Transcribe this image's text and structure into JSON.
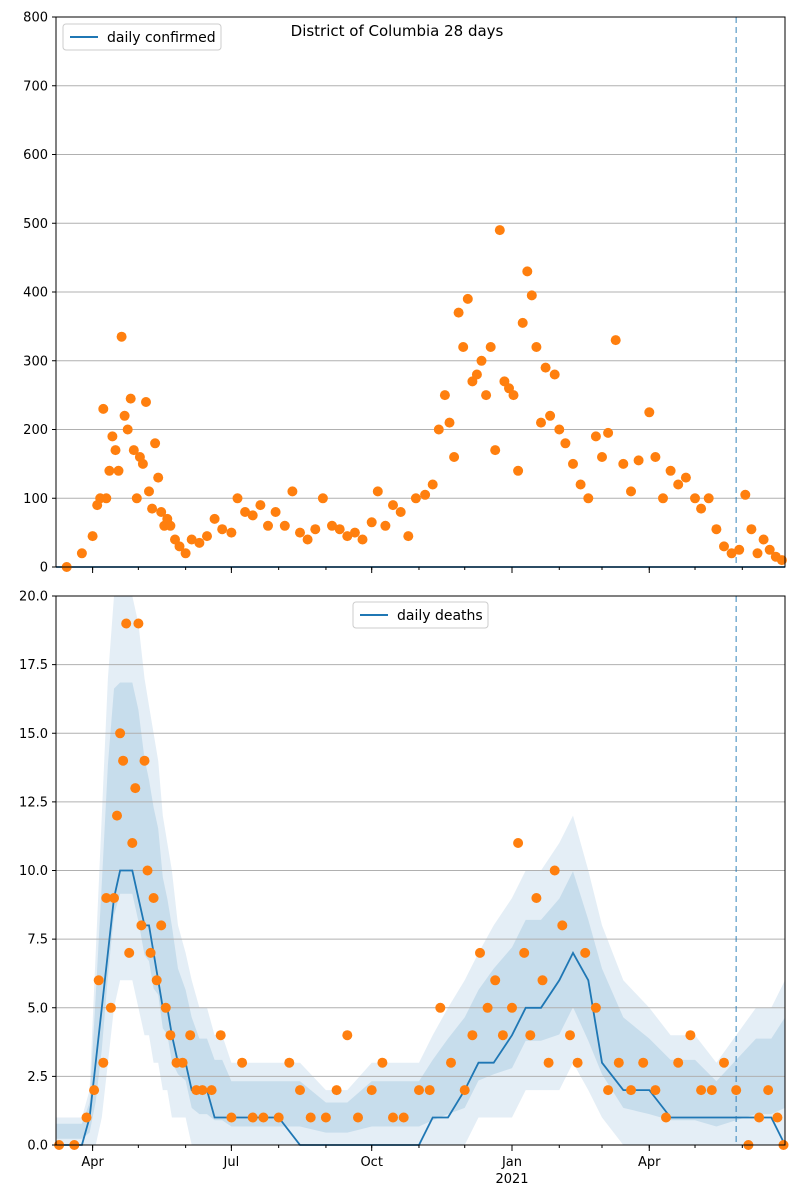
{
  "chart_data": [
    {
      "type": "scatter",
      "title": "District of Columbia 28 days",
      "legend": {
        "position": "top-left",
        "entries": [
          "daily confirmed"
        ]
      },
      "ylim": [
        0,
        800
      ],
      "yticks": [
        0,
        100,
        200,
        300,
        400,
        500,
        600,
        700,
        800
      ],
      "xlim": [
        "2020-03-08",
        "2021-06-29"
      ],
      "grid": "y",
      "forecast_start": "2021-05-28",
      "colors": {
        "line": "#1f77b4",
        "points": "#ff7f0e",
        "vline": "#1f77b4"
      },
      "series": [
        {
          "name": "daily confirmed",
          "kind": "line",
          "x": [
            "2020-03-08",
            "2021-06-29"
          ],
          "y": [
            0,
            0
          ]
        },
        {
          "kind": "points",
          "x": [
            "2020-03-15",
            "2020-03-25",
            "2020-04-01",
            "2020-04-04",
            "2020-04-06",
            "2020-04-08",
            "2020-04-10",
            "2020-04-12",
            "2020-04-14",
            "2020-04-16",
            "2020-04-18",
            "2020-04-20",
            "2020-04-22",
            "2020-04-24",
            "2020-04-26",
            "2020-04-28",
            "2020-04-30",
            "2020-05-02",
            "2020-05-04",
            "2020-05-06",
            "2020-05-08",
            "2020-05-10",
            "2020-05-12",
            "2020-05-14",
            "2020-05-16",
            "2020-05-18",
            "2020-05-20",
            "2020-05-22",
            "2020-05-25",
            "2020-05-28",
            "2020-06-01",
            "2020-06-05",
            "2020-06-10",
            "2020-06-15",
            "2020-06-20",
            "2020-06-25",
            "2020-07-01",
            "2020-07-05",
            "2020-07-10",
            "2020-07-15",
            "2020-07-20",
            "2020-07-25",
            "2020-07-30",
            "2020-08-05",
            "2020-08-10",
            "2020-08-15",
            "2020-08-20",
            "2020-08-25",
            "2020-08-30",
            "2020-09-05",
            "2020-09-10",
            "2020-09-15",
            "2020-09-20",
            "2020-09-25",
            "2020-10-01",
            "2020-10-05",
            "2020-10-10",
            "2020-10-15",
            "2020-10-20",
            "2020-10-25",
            "2020-10-30",
            "2020-11-05",
            "2020-11-10",
            "2020-11-14",
            "2020-11-18",
            "2020-11-21",
            "2020-11-24",
            "2020-11-27",
            "2020-11-30",
            "2020-12-03",
            "2020-12-06",
            "2020-12-09",
            "2020-12-12",
            "2020-12-15",
            "2020-12-18",
            "2020-12-21",
            "2020-12-24",
            "2020-12-27",
            "2020-12-30",
            "2021-01-02",
            "2021-01-05",
            "2021-01-08",
            "2021-01-11",
            "2021-01-14",
            "2021-01-17",
            "2021-01-20",
            "2021-01-23",
            "2021-01-26",
            "2021-01-29",
            "2021-02-01",
            "2021-02-05",
            "2021-02-10",
            "2021-02-15",
            "2021-02-20",
            "2021-02-25",
            "2021-03-01",
            "2021-03-05",
            "2021-03-10",
            "2021-03-15",
            "2021-03-20",
            "2021-03-25",
            "2021-04-01",
            "2021-04-05",
            "2021-04-10",
            "2021-04-15",
            "2021-04-20",
            "2021-04-25",
            "2021-05-01",
            "2021-05-05",
            "2021-05-10",
            "2021-05-15",
            "2021-05-20",
            "2021-05-25",
            "2021-05-30",
            "2021-06-03",
            "2021-06-07",
            "2021-06-11",
            "2021-06-15",
            "2021-06-19",
            "2021-06-23",
            "2021-06-27"
          ],
          "y": [
            0,
            20,
            45,
            90,
            100,
            230,
            100,
            140,
            190,
            170,
            140,
            335,
            220,
            200,
            245,
            170,
            100,
            160,
            150,
            240,
            110,
            85,
            180,
            130,
            80,
            60,
            70,
            60,
            40,
            30,
            20,
            40,
            35,
            45,
            70,
            55,
            50,
            100,
            80,
            75,
            90,
            60,
            80,
            60,
            110,
            50,
            40,
            55,
            100,
            60,
            55,
            45,
            50,
            40,
            65,
            110,
            60,
            90,
            80,
            45,
            100,
            105,
            120,
            200,
            250,
            210,
            160,
            370,
            320,
            390,
            270,
            280,
            300,
            250,
            320,
            170,
            490,
            270,
            260,
            250,
            140,
            355,
            430,
            395,
            320,
            210,
            290,
            220,
            280,
            200,
            180,
            150,
            120,
            100,
            190,
            160,
            195,
            330,
            150,
            110,
            155,
            225,
            160,
            100,
            140,
            120,
            130,
            100,
            85,
            100,
            55,
            30,
            20,
            25,
            105,
            55,
            20,
            40,
            25,
            15,
            10
          ]
        }
      ]
    },
    {
      "type": "line",
      "legend": {
        "position": "top-center",
        "entries": [
          "daily deaths"
        ]
      },
      "ylim": [
        0,
        20
      ],
      "yticks": [
        "0.0",
        "2.5",
        "5.0",
        "7.5",
        "10.0",
        "12.5",
        "15.0",
        "17.5",
        "20.0"
      ],
      "xlim": [
        "2020-03-08",
        "2021-06-29"
      ],
      "xticks": [
        {
          "date": "2020-04-01",
          "label": "Apr"
        },
        {
          "date": "2020-07-01",
          "label": "Jul"
        },
        {
          "date": "2020-10-01",
          "label": "Oct"
        },
        {
          "date": "2021-01-01",
          "label": "Jan",
          "sublabel": "2021"
        },
        {
          "date": "2021-04-01",
          "label": "Apr"
        }
      ],
      "grid": "y",
      "forecast_start": "2021-05-28",
      "colors": {
        "line": "#1f77b4",
        "points": "#ff7f0e",
        "band": "#1f77b4",
        "vline": "#1f77b4"
      },
      "series": [
        {
          "name": "daily deaths",
          "kind": "line",
          "x": [
            "2020-03-08",
            "2020-03-25",
            "2020-03-30",
            "2020-04-03",
            "2020-04-07",
            "2020-04-11",
            "2020-04-15",
            "2020-04-19",
            "2020-04-23",
            "2020-04-27",
            "2020-05-01",
            "2020-05-05",
            "2020-05-08",
            "2020-05-11",
            "2020-05-14",
            "2020-05-17",
            "2020-05-20",
            "2020-05-23",
            "2020-05-27",
            "2020-06-01",
            "2020-06-05",
            "2020-06-10",
            "2020-06-15",
            "2020-06-20",
            "2020-06-25",
            "2020-07-01",
            "2020-07-15",
            "2020-08-01",
            "2020-08-15",
            "2020-09-01",
            "2020-09-15",
            "2020-10-01",
            "2020-10-15",
            "2020-11-01",
            "2020-11-10",
            "2020-11-20",
            "2020-12-01",
            "2020-12-10",
            "2020-12-20",
            "2021-01-01",
            "2021-01-10",
            "2021-01-20",
            "2021-02-01",
            "2021-02-10",
            "2021-02-20",
            "2021-03-01",
            "2021-03-15",
            "2021-04-01",
            "2021-04-15",
            "2021-05-01",
            "2021-05-15",
            "2021-05-28",
            "2021-06-10",
            "2021-06-20",
            "2021-06-29"
          ],
          "y": [
            0,
            0,
            1,
            3,
            5,
            7,
            9,
            10,
            10,
            10,
            9,
            8,
            8,
            7,
            6,
            5,
            5,
            4,
            3,
            3,
            2,
            2,
            2,
            1,
            1,
            1,
            1,
            1,
            0,
            0,
            0,
            0,
            0,
            0,
            1,
            1,
            2,
            3,
            3,
            4,
            5,
            5,
            6,
            7,
            6,
            3,
            2,
            2,
            1,
            1,
            1,
            1,
            1,
            1,
            0
          ]
        },
        {
          "kind": "band",
          "x": [
            "2020-03-08",
            "2020-03-25",
            "2020-03-30",
            "2020-04-03",
            "2020-04-07",
            "2020-04-11",
            "2020-04-15",
            "2020-04-19",
            "2020-04-23",
            "2020-04-27",
            "2020-05-01",
            "2020-05-05",
            "2020-05-08",
            "2020-05-11",
            "2020-05-14",
            "2020-05-17",
            "2020-05-20",
            "2020-05-23",
            "2020-05-27",
            "2020-06-01",
            "2020-06-05",
            "2020-06-10",
            "2020-06-15",
            "2020-06-20",
            "2020-06-25",
            "2020-07-01",
            "2020-07-15",
            "2020-08-01",
            "2020-08-15",
            "2020-09-01",
            "2020-09-15",
            "2020-10-01",
            "2020-10-15",
            "2020-11-01",
            "2020-11-10",
            "2020-11-20",
            "2020-12-01",
            "2020-12-10",
            "2020-12-20",
            "2021-01-01",
            "2021-01-10",
            "2021-01-20",
            "2021-02-01",
            "2021-02-10",
            "2021-02-20",
            "2021-03-01",
            "2021-03-15",
            "2021-04-01",
            "2021-04-15",
            "2021-05-01",
            "2021-05-15",
            "2021-05-28",
            "2021-06-10",
            "2021-06-20",
            "2021-06-29"
          ],
          "low": [
            0,
            0,
            0,
            0,
            1,
            3,
            5,
            6,
            6,
            6,
            5,
            4,
            4,
            3,
            3,
            2,
            2,
            1,
            1,
            1,
            0,
            0,
            0,
            0,
            0,
            0,
            0,
            0,
            0,
            0,
            0,
            0,
            0,
            0,
            0,
            0,
            0,
            1,
            1,
            1,
            2,
            2,
            2,
            3,
            2,
            1,
            0,
            0,
            0,
            0,
            0,
            0,
            0,
            0,
            0
          ],
          "high": [
            1,
            1,
            2,
            7,
            12,
            17,
            20,
            20,
            20,
            20,
            19,
            17,
            16,
            15,
            14,
            12,
            11,
            10,
            8,
            7,
            6,
            5,
            5,
            4,
            4,
            3,
            3,
            3,
            3,
            2,
            2,
            3,
            3,
            3,
            4,
            5,
            6,
            7,
            8,
            9,
            10,
            10,
            11,
            12,
            10,
            8,
            6,
            5,
            4,
            4,
            3,
            4,
            5,
            5,
            6
          ]
        },
        {
          "kind": "points",
          "x": [
            "2020-03-10",
            "2020-03-20",
            "2020-03-28",
            "2020-04-02",
            "2020-04-05",
            "2020-04-08",
            "2020-04-10",
            "2020-04-13",
            "2020-04-15",
            "2020-04-17",
            "2020-04-19",
            "2020-04-21",
            "2020-04-23",
            "2020-04-25",
            "2020-04-27",
            "2020-04-29",
            "2020-05-01",
            "2020-05-03",
            "2020-05-05",
            "2020-05-07",
            "2020-05-09",
            "2020-05-11",
            "2020-05-13",
            "2020-05-16",
            "2020-05-19",
            "2020-05-22",
            "2020-05-26",
            "2020-05-30",
            "2020-06-04",
            "2020-06-08",
            "2020-06-12",
            "2020-06-18",
            "2020-06-24",
            "2020-07-01",
            "2020-07-08",
            "2020-07-15",
            "2020-07-22",
            "2020-08-01",
            "2020-08-08",
            "2020-08-15",
            "2020-08-22",
            "2020-09-01",
            "2020-09-08",
            "2020-09-15",
            "2020-09-22",
            "2020-10-01",
            "2020-10-08",
            "2020-10-15",
            "2020-10-22",
            "2020-11-01",
            "2020-11-08",
            "2020-11-15",
            "2020-11-22",
            "2020-12-01",
            "2020-12-06",
            "2020-12-11",
            "2020-12-16",
            "2020-12-21",
            "2020-12-26",
            "2021-01-01",
            "2021-01-05",
            "2021-01-09",
            "2021-01-13",
            "2021-01-17",
            "2021-01-21",
            "2021-01-25",
            "2021-01-29",
            "2021-02-03",
            "2021-02-08",
            "2021-02-13",
            "2021-02-18",
            "2021-02-25",
            "2021-03-05",
            "2021-03-12",
            "2021-03-20",
            "2021-03-28",
            "2021-04-05",
            "2021-04-12",
            "2021-04-20",
            "2021-04-28",
            "2021-05-05",
            "2021-05-12",
            "2021-05-20",
            "2021-05-28",
            "2021-06-05",
            "2021-06-12",
            "2021-06-18",
            "2021-06-24",
            "2021-06-28"
          ],
          "y": [
            0,
            0,
            1,
            2,
            6,
            3,
            9,
            5,
            9,
            12,
            15,
            14,
            19,
            7,
            11,
            13,
            19,
            8,
            14,
            10,
            7,
            9,
            6,
            8,
            5,
            4,
            3,
            3,
            4,
            2,
            2,
            2,
            4,
            1,
            3,
            1,
            1,
            1,
            3,
            2,
            1,
            1,
            2,
            4,
            1,
            2,
            3,
            1,
            1,
            2,
            2,
            5,
            3,
            2,
            4,
            7,
            5,
            6,
            4,
            5,
            11,
            7,
            4,
            9,
            6,
            3,
            10,
            8,
            4,
            3,
            7,
            5,
            2,
            3,
            2,
            3,
            2,
            1,
            3,
            4,
            2,
            2,
            3,
            2,
            0,
            1,
            2,
            1,
            0
          ]
        }
      ]
    }
  ]
}
